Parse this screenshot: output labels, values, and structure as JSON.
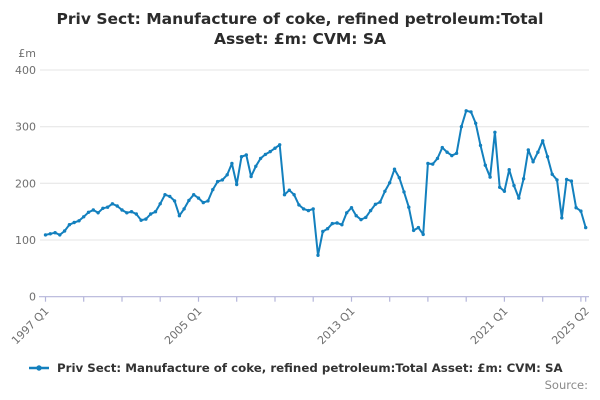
{
  "title": "Priv Sect: Manufacture of coke, refined petroleum:Total Asset: £m: CVM: SA",
  "legend_label": "Priv Sect: Manufacture of coke, refined petroleum:Total Asset: £m: CVM: SA",
  "source_label": "Source:",
  "colors": {
    "line": "#1380BE",
    "grid": "#e4e4e4",
    "axis": "#b4b5da",
    "title_text": "#2b2b2b",
    "axis_text": "#6f6f6f",
    "source_text": "#8a8a8a"
  },
  "chart_data": {
    "type": "line",
    "title": "Priv Sect: Manufacture of coke, refined petroleum:Total Asset: £m: CVM: SA",
    "unit": "£m",
    "frequency": "quarterly",
    "x_period_start": "1997 Q1",
    "x_period_end": "2025 Q2",
    "ylim": [
      0,
      400
    ],
    "y_ticks": [
      0,
      100,
      200,
      300,
      400
    ],
    "grid": "horizontal",
    "legend_position": "bottom",
    "x_tick_interval_quarters": 8,
    "x_tick_labels": [
      {
        "index": 0,
        "label": "1997 Q1"
      },
      {
        "index": 32,
        "label": "2005 Q1"
      },
      {
        "index": 64,
        "label": "2013 Q1"
      },
      {
        "index": 96,
        "label": "2021 Q1"
      },
      {
        "index": 113,
        "label": "2025 Q2"
      }
    ],
    "values": [
      109,
      111,
      113,
      109,
      116,
      127,
      131,
      134,
      141,
      149,
      153,
      148,
      156,
      158,
      164,
      160,
      153,
      148,
      150,
      146,
      135,
      137,
      146,
      150,
      164,
      180,
      177,
      169,
      143,
      155,
      170,
      180,
      174,
      166,
      169,
      189,
      203,
      206,
      215,
      235,
      198,
      247,
      250,
      212,
      230,
      244,
      251,
      256,
      262,
      268,
      180,
      188,
      180,
      162,
      155,
      152,
      155,
      73,
      115,
      120,
      129,
      130,
      127,
      148,
      157,
      143,
      136,
      140,
      152,
      163,
      167,
      186,
      201,
      225,
      210,
      185,
      158,
      117,
      122,
      110,
      235,
      234,
      244,
      263,
      255,
      249,
      253,
      300,
      328,
      326,
      306,
      267,
      232,
      211,
      290,
      193,
      186,
      224,
      196,
      174,
      208,
      259,
      238,
      255,
      275,
      247,
      216,
      206,
      139,
      207,
      204,
      157,
      151,
      122
    ]
  }
}
